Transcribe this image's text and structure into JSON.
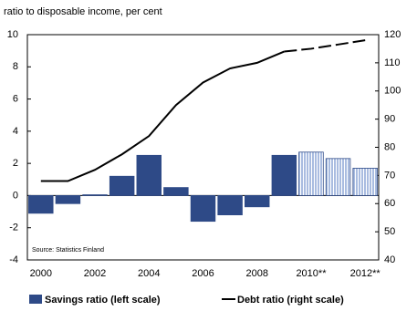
{
  "chart_data": {
    "type": "bar-line",
    "subtitle": "ratio to disposable income, per cent",
    "annotation": "Source: Statistics Finland",
    "categories": [
      "2000",
      null,
      "2002",
      null,
      "2004",
      null,
      "2006",
      null,
      "2008",
      null,
      "2010**",
      null,
      "2012**"
    ],
    "forecast": [
      false,
      false,
      false,
      false,
      false,
      false,
      false,
      false,
      false,
      false,
      true,
      true,
      true
    ],
    "series": [
      {
        "name": "Savings ratio (left scale)",
        "color": "#2e4a87",
        "forecast_color": "#a9bce0",
        "axis": "y",
        "values": [
          -1.1,
          -0.5,
          0.05,
          1.2,
          2.5,
          0.5,
          -1.6,
          -1.2,
          -0.7,
          2.5,
          2.7,
          2.3,
          1.7
        ]
      },
      {
        "name": "Debt ratio (right scale)",
        "color": "#000000",
        "axis": "y2",
        "values": [
          68,
          68,
          72,
          77.5,
          84,
          95,
          103,
          108,
          110,
          114,
          115,
          116.5,
          118
        ]
      }
    ],
    "ylim": [
      -4,
      10
    ],
    "yticks": [
      -4,
      -2,
      0,
      2,
      4,
      6,
      8,
      10
    ],
    "y2lim": [
      40,
      120
    ],
    "y2ticks": [
      40,
      50,
      60,
      70,
      80,
      90,
      100,
      110,
      120
    ]
  }
}
